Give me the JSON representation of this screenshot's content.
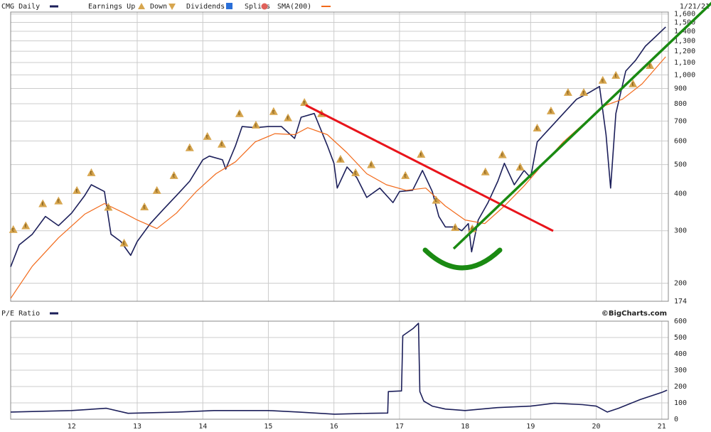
{
  "chart_data": [
    {
      "type": "line",
      "title": "CMG Daily",
      "date": "1/21/21",
      "source": "©BigCharts.com",
      "events_legend": [
        "Earnings Up",
        "Down",
        "Dividends",
        "Splits"
      ],
      "log_scale": true,
      "grid": true,
      "xlim": [
        11.07,
        21.1
      ],
      "xticks": [
        12,
        13,
        14,
        15,
        16,
        17,
        18,
        19,
        20,
        21
      ],
      "ylim": [
        174,
        1624
      ],
      "yticks": [
        174,
        200,
        300,
        400,
        500,
        600,
        700,
        800,
        900,
        {
          "value": 1000,
          "label": "1,000"
        },
        {
          "value": 1100,
          "label": "1,100"
        },
        {
          "value": 1200,
          "label": "1,200"
        },
        {
          "value": 1300,
          "label": "1,300"
        },
        {
          "value": 1400,
          "label": "1,400"
        },
        {
          "value": 1500,
          "label": "1,500"
        },
        {
          "value": 1600,
          "label": "1,600"
        }
      ],
      "series": [
        {
          "name": "CMG Daily",
          "color": "#1c1f5a",
          "x": [
            11.07,
            11.2,
            11.4,
            11.6,
            11.8,
            12.0,
            12.2,
            12.3,
            12.5,
            12.55,
            12.6,
            12.75,
            12.9,
            13.0,
            13.2,
            13.4,
            13.6,
            13.8,
            14.0,
            14.1,
            14.3,
            14.35,
            14.5,
            14.6,
            14.8,
            15.0,
            15.2,
            15.4,
            15.5,
            15.7,
            15.9,
            16.0,
            16.05,
            16.2,
            16.35,
            16.5,
            16.7,
            16.9,
            17.0,
            17.2,
            17.35,
            17.5,
            17.6,
            17.7,
            17.85,
            17.95,
            18.05,
            18.1,
            18.2,
            18.35,
            18.5,
            18.6,
            18.75,
            18.9,
            19.0,
            19.1,
            19.3,
            19.5,
            19.7,
            19.9,
            20.05,
            20.15,
            20.22,
            20.3,
            20.45,
            20.6,
            20.75,
            20.9,
            21.06
          ],
          "values": [
            227,
            269,
            292,
            335,
            312,
            344,
            394,
            428,
            406,
            344,
            292,
            276,
            248,
            276,
            317,
            354,
            394,
            440,
            519,
            534,
            519,
            483,
            579,
            671,
            665,
            671,
            671,
            612,
            721,
            742,
            579,
            505,
            417,
            491,
            452,
            388,
            417,
            373,
            406,
            410,
            478,
            406,
            335,
            309,
            309,
            300,
            317,
            255,
            326,
            373,
            440,
            505,
            428,
            478,
            452,
            596,
            665,
            742,
            828,
            874,
            914,
            629,
            417,
            742,
            1030,
            1119,
            1248,
            1340,
            1448
          ]
        },
        {
          "name": "SMA(200)",
          "color": "#f26a1b",
          "x": [
            11.07,
            11.4,
            11.8,
            12.2,
            12.5,
            12.8,
            13.0,
            13.3,
            13.6,
            13.9,
            14.2,
            14.5,
            14.8,
            15.1,
            15.4,
            15.6,
            15.9,
            16.2,
            16.5,
            16.8,
            17.1,
            17.4,
            17.7,
            18.0,
            18.3,
            18.6,
            18.9,
            19.2,
            19.5,
            19.8,
            20.1,
            20.4,
            20.7,
            21.06
          ],
          "values": [
            178,
            228,
            284,
            341,
            370,
            344,
            326,
            305,
            344,
            406,
            466,
            511,
            596,
            635,
            630,
            665,
            630,
            548,
            466,
            428,
            410,
            417,
            363,
            326,
            317,
            363,
            424,
            505,
            596,
            683,
            784,
            828,
            933,
            1150
          ]
        }
      ],
      "earnings_label": "E",
      "earnings": [
        {
          "x": 11.11,
          "y": 303
        },
        {
          "x": 11.3,
          "y": 312
        },
        {
          "x": 11.56,
          "y": 370
        },
        {
          "x": 11.8,
          "y": 378
        },
        {
          "x": 12.08,
          "y": 410
        },
        {
          "x": 12.3,
          "y": 470
        },
        {
          "x": 12.56,
          "y": 360
        },
        {
          "x": 12.8,
          "y": 273
        },
        {
          "x": 13.11,
          "y": 361
        },
        {
          "x": 13.3,
          "y": 410
        },
        {
          "x": 13.56,
          "y": 460
        },
        {
          "x": 13.8,
          "y": 570
        },
        {
          "x": 14.07,
          "y": 622
        },
        {
          "x": 14.29,
          "y": 586
        },
        {
          "x": 14.56,
          "y": 742
        },
        {
          "x": 14.81,
          "y": 679
        },
        {
          "x": 15.08,
          "y": 754
        },
        {
          "x": 15.3,
          "y": 718
        },
        {
          "x": 15.55,
          "y": 809
        },
        {
          "x": 15.81,
          "y": 742
        },
        {
          "x": 16.1,
          "y": 522
        },
        {
          "x": 16.33,
          "y": 470
        },
        {
          "x": 16.57,
          "y": 500
        },
        {
          "x": 17.09,
          "y": 460
        },
        {
          "x": 17.33,
          "y": 542
        },
        {
          "x": 17.56,
          "y": 380
        },
        {
          "x": 17.85,
          "y": 308
        },
        {
          "x": 18.11,
          "y": 305
        },
        {
          "x": 18.31,
          "y": 473
        },
        {
          "x": 18.57,
          "y": 540
        },
        {
          "x": 18.84,
          "y": 491
        },
        {
          "x": 19.1,
          "y": 664
        },
        {
          "x": 19.31,
          "y": 758
        },
        {
          "x": 19.57,
          "y": 874
        },
        {
          "x": 19.81,
          "y": 874
        },
        {
          "x": 20.1,
          "y": 960
        },
        {
          "x": 20.3,
          "y": 997
        },
        {
          "x": 20.56,
          "y": 934
        },
        {
          "x": 20.82,
          "y": 1076
        }
      ]
    },
    {
      "type": "line",
      "grid": true,
      "log_scale": false,
      "xlim": [
        11.07,
        21.1
      ],
      "xticks": [
        12,
        13,
        14,
        15,
        16,
        17,
        18,
        19,
        20,
        21
      ],
      "ylim": [
        0,
        600
      ],
      "yticks": [
        0,
        100,
        200,
        300,
        400,
        500,
        600
      ],
      "series": [
        {
          "name": "P/E Ratio",
          "color": "#1c1f5a",
          "x": [
            11.07,
            12.0,
            12.53,
            12.86,
            13.63,
            14.17,
            15.0,
            15.46,
            16.01,
            16.55,
            16.82,
            16.83,
            17.03,
            17.05,
            17.21,
            17.29,
            17.31,
            17.37,
            17.5,
            17.7,
            18.0,
            18.49,
            19.0,
            19.36,
            19.79,
            20.0,
            20.17,
            20.34,
            20.67,
            21.0,
            21.08
          ],
          "values": [
            44,
            53,
            67,
            36,
            44,
            53,
            53,
            44,
            31,
            36,
            38,
            169,
            173,
            511,
            556,
            587,
            169,
            111,
            80,
            62,
            53,
            71,
            80,
            98,
            89,
            80,
            44,
            67,
            120,
            164,
            178
          ]
        }
      ]
    }
  ]
}
